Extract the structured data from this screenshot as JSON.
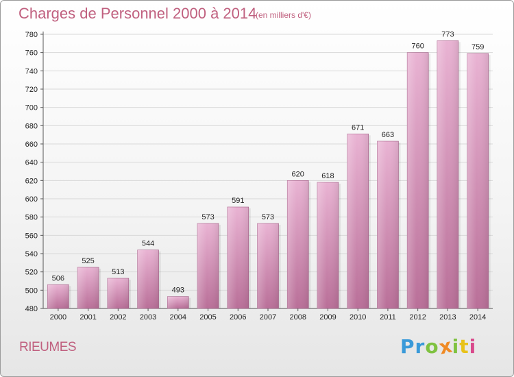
{
  "title": "Charges de Personnel 2000 à 2014",
  "subtitle": "(en milliers d'€)",
  "town": "RIEUMES",
  "logo": {
    "letters": [
      "P",
      "r",
      "o",
      "x",
      "i",
      "t",
      "i"
    ],
    "colors": [
      "#3a9ad9",
      "#3a9ad9",
      "#7fc241",
      "#f08a24",
      "#7fc241",
      "#e8c21a",
      "#d94a8c"
    ]
  },
  "colors": {
    "bar_light": "#e9b3d3",
    "bar_dark": "#b96f98",
    "grid": "#d8d8d8",
    "text_accent": "#c0607f"
  },
  "chart_data": {
    "type": "bar",
    "categories": [
      "2000",
      "2001",
      "2002",
      "2003",
      "2004",
      "2005",
      "2006",
      "2007",
      "2008",
      "2009",
      "2010",
      "2011",
      "2012",
      "2013",
      "2014"
    ],
    "values": [
      506,
      525,
      513,
      544,
      493,
      573,
      591,
      573,
      620,
      618,
      671,
      663,
      760,
      773,
      759
    ],
    "value_labels": [
      "506",
      "525",
      "513",
      "544",
      "493",
      "573",
      "591",
      "573",
      "620",
      "618",
      "671",
      "663",
      "760",
      "773",
      "759"
    ],
    "yticks": [
      "480",
      "500",
      "520",
      "540",
      "560",
      "580",
      "600",
      "620",
      "640",
      "660",
      "680",
      "700",
      "720",
      "740",
      "760",
      "780"
    ],
    "ylim": [
      480,
      780
    ],
    "title": "Charges de Personnel 2000 à 2014",
    "xlabel": "",
    "ylabel": "",
    "grid": true
  }
}
